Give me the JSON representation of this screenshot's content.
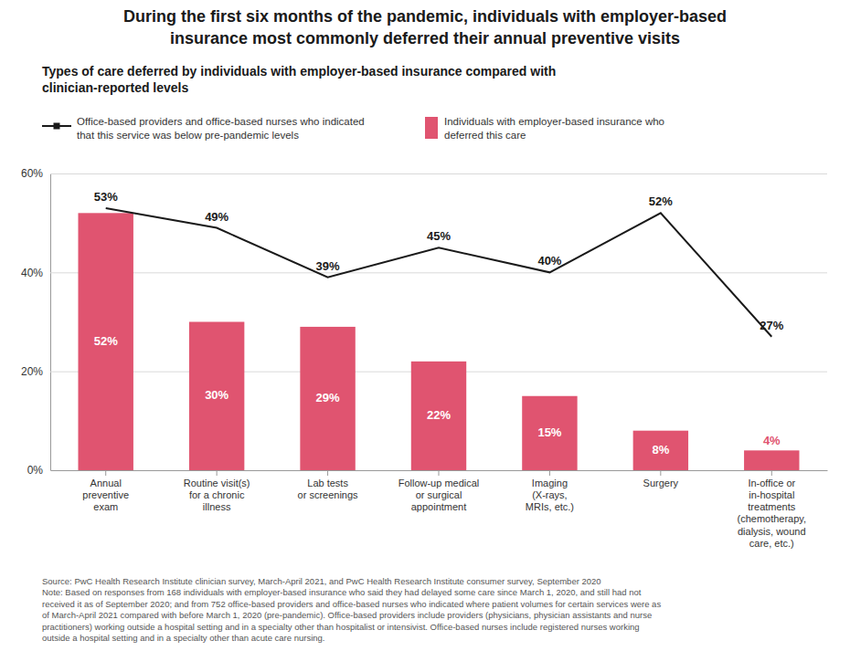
{
  "chart_data": {
    "type": "bar",
    "title": "During the first six months of the pandemic, individuals with employer-based\ninsurance most commonly deferred their annual preventive visits",
    "subtitle": "Types of care deferred by individuals with employer-based insurance compared with\nclinician-reported levels",
    "categories": [
      "Annual\npreventive\nexam",
      "Routine visit(s)\nfor a chronic\nillness",
      "Lab tests\nor screenings",
      "Follow-up medical\nor surgical\nappointment",
      "Imaging\n(X-rays,\nMRIs, etc.)",
      "Surgery",
      "In-office or\nin-hospital\ntreatments\n(chemotherapy,\ndialysis, wound\ncare, etc.)"
    ],
    "series": [
      {
        "name": "Individuals with employer-based insurance who\ndeferred this care",
        "type": "bar",
        "color": "#e05470",
        "values": [
          52,
          30,
          29,
          22,
          15,
          8,
          4
        ],
        "value_labels": [
          "52%",
          "30%",
          "29%",
          "22%",
          "15%",
          "8%",
          "4%"
        ]
      },
      {
        "name": "Office-based providers and office-based nurses who indicated\nthat this service was below pre-pandemic levels",
        "type": "line",
        "color": "#1a1a1a",
        "values": [
          53,
          49,
          39,
          45,
          40,
          52,
          27
        ],
        "value_labels": [
          "53%",
          "49%",
          "39%",
          "45%",
          "40%",
          "52%",
          "27%"
        ]
      }
    ],
    "ylim": [
      0,
      60
    ],
    "yticks": [
      {
        "value": 0,
        "label": "0%"
      },
      {
        "value": 20,
        "label": "20%"
      },
      {
        "value": 40,
        "label": "40%"
      },
      {
        "value": 60,
        "label": "60%"
      }
    ],
    "grid": true,
    "data_labels": true,
    "annotations": [
      "Source: PwC Health Research Institute clinician survey, March-April 2021, and PwC Health Research Institute consumer survey, September 2020\nNote: Based on responses from 168 individuals with employer-based insurance who said they had delayed some care since March 1, 2020, and still had not\nreceived it as of September 2020; and from 752 office-based providers and office-based nurses who indicated where patient volumes for certain services were as\nof March-April 2021 compared with before March 1, 2020 (pre-pandemic). Office-based providers include providers (physicians, physician assistants and nurse\npractitioners) working outside a hospital setting and in a specialty other than hospitalist or intensivist. Office-based nurses include registered nurses working\noutside a hospital setting and in a specialty other than acute care nursing."
    ]
  }
}
